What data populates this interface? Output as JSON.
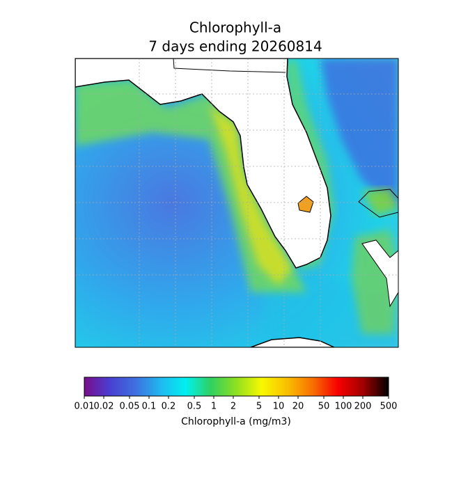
{
  "title": [
    "Chlorophyll-a",
    "7 days ending 20260814"
  ],
  "colorbar": {
    "label": "Chlorophyll-a (mg/m3)",
    "scale": "log",
    "lim": [
      0.01,
      500
    ],
    "ticks": [
      0.01,
      0.02,
      0.05,
      0.1,
      0.2,
      0.5,
      1,
      2,
      5,
      10,
      20,
      50,
      100,
      200,
      500
    ],
    "colors": [
      "#7a0d8c",
      "#4a3fd0",
      "#3f6fe0",
      "#20b8f0",
      "#00f0f0",
      "#30d060",
      "#90e020",
      "#f8f800",
      "#f8c000",
      "#f87000",
      "#f80000",
      "#a00000",
      "#000000"
    ]
  }
}
